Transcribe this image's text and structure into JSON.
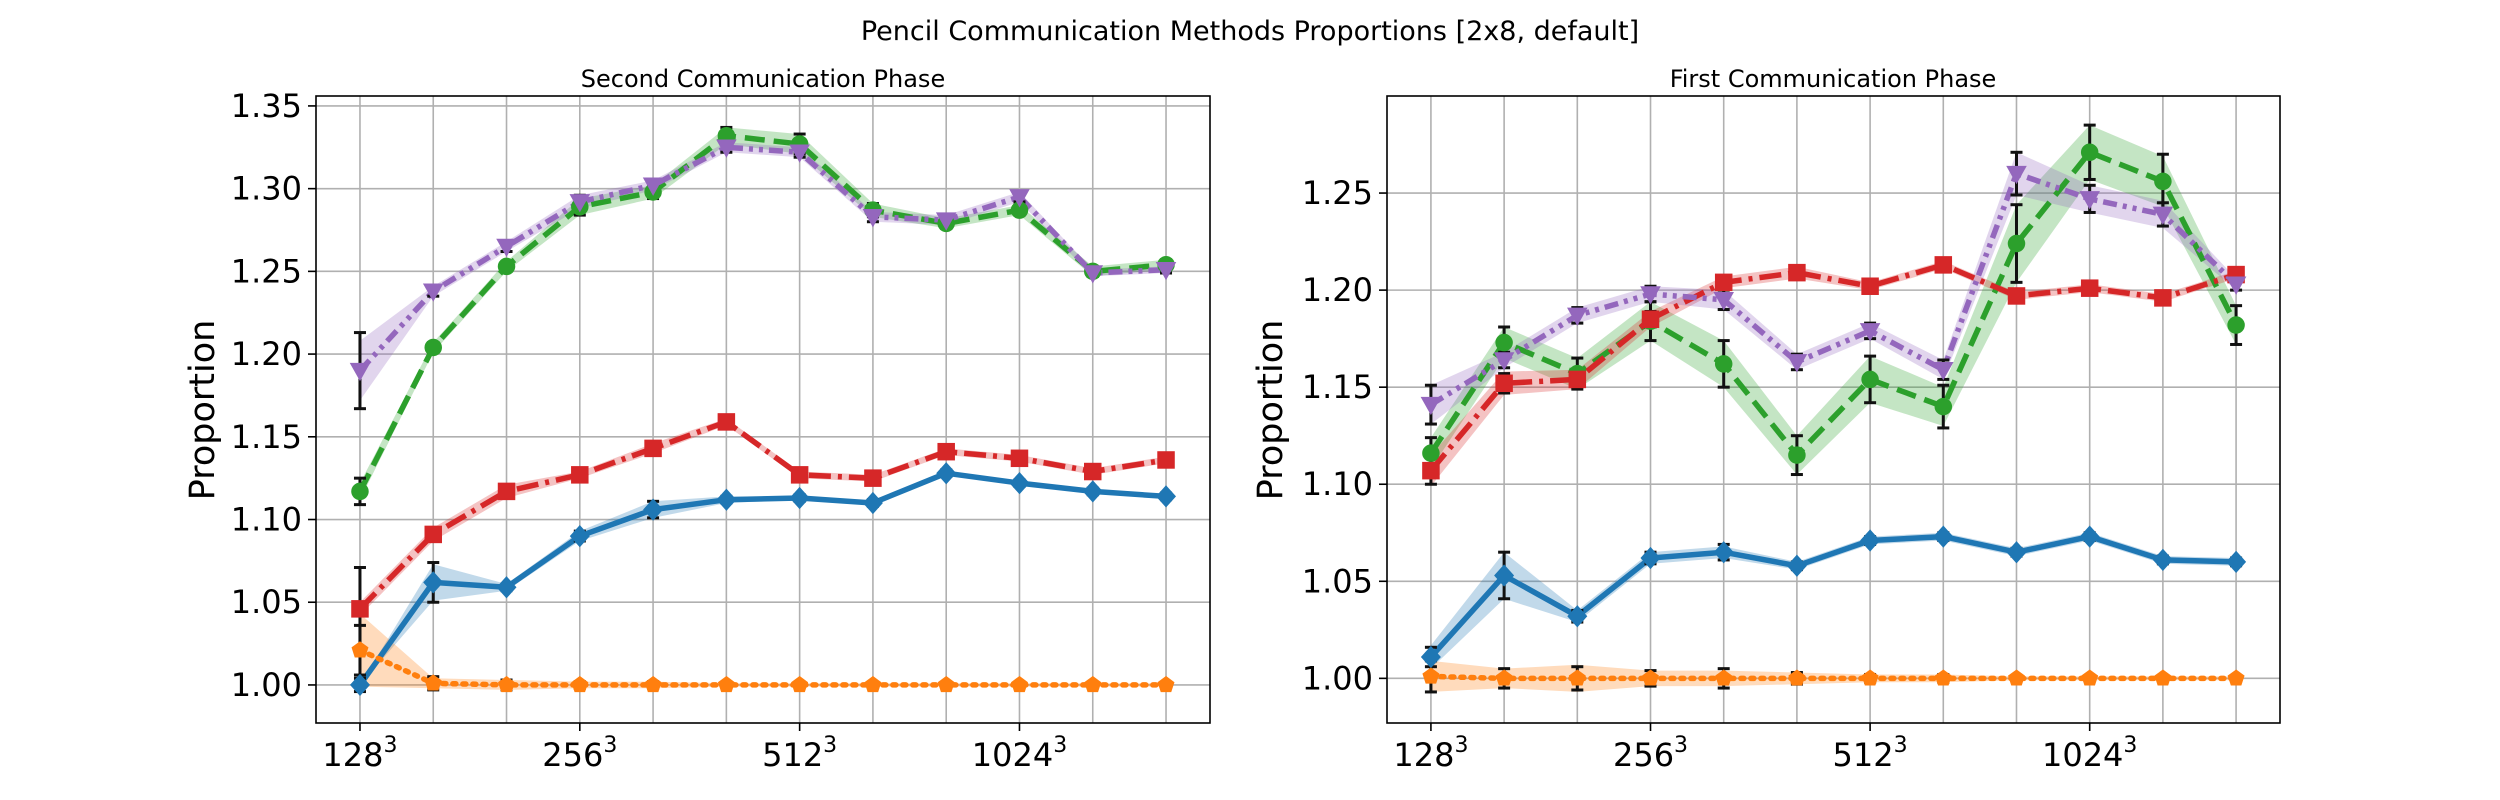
{
  "figure_title": "Pencil Communication Methods Proportions [2x8, default]",
  "chart_data": [
    {
      "type": "line",
      "title": "Second Communication Phase",
      "xlabel": "",
      "ylabel": "Proportion",
      "x": [
        1,
        2,
        3,
        4,
        5,
        6,
        7,
        8,
        9,
        10,
        11,
        12
      ],
      "xticks": [
        {
          "x": 1,
          "base": "128",
          "exp": "3"
        },
        {
          "x": 4,
          "base": "256",
          "exp": "3"
        },
        {
          "x": 7,
          "base": "512",
          "exp": "3"
        },
        {
          "x": 10,
          "base": "1024",
          "exp": "3"
        }
      ],
      "xlim": [
        0.4,
        12.6
      ],
      "ylim": [
        0.977,
        1.356
      ],
      "yticks": [
        "1.00",
        "1.05",
        "1.10",
        "1.15",
        "1.20",
        "1.25",
        "1.30",
        "1.35"
      ],
      "grid": true,
      "series": [
        {
          "color": "#1f77b4",
          "linestyle": "solid",
          "marker": "diamond",
          "values": [
            1.0,
            1.062,
            1.059,
            1.09,
            1.106,
            1.112,
            1.113,
            1.11,
            1.128,
            1.122,
            1.117,
            1.114
          ],
          "band": [
            0.0,
            0.011,
            0.002,
            0.003,
            0.005,
            0.002,
            0.001,
            0.001,
            0.001,
            0.001,
            0.001,
            0.001
          ],
          "errors": [
            0.004,
            0.012,
            0.002,
            0.003,
            0.005,
            0.002,
            0.002,
            0.002,
            0.002,
            0.002,
            0.002,
            0.002
          ]
        },
        {
          "color": "#ff7f0e",
          "linestyle": "dotted",
          "marker": "pentagon",
          "values": [
            1.021,
            1.001,
            1.0,
            1.0,
            1.0,
            1.0,
            1.0,
            1.0,
            1.0,
            1.0,
            1.0,
            1.0
          ],
          "band": [
            0.022,
            0.003,
            0.003,
            0.002,
            0.002,
            0.001,
            0.001,
            0.001,
            0.001,
            0.001,
            0.001,
            0.001
          ],
          "errors": [
            0.015,
            0.004,
            0.003,
            0.002,
            0.002,
            0.001,
            0.001,
            0.001,
            0.001,
            0.001,
            0.001,
            0.001
          ]
        },
        {
          "color": "#2ca02c",
          "linestyle": "dashed",
          "marker": "circle",
          "values": [
            1.117,
            1.204,
            1.253,
            1.289,
            1.298,
            1.332,
            1.327,
            1.287,
            1.279,
            1.287,
            1.25,
            1.254
          ],
          "band": [
            0.005,
            0.003,
            0.003,
            0.005,
            0.004,
            0.005,
            0.006,
            0.004,
            0.003,
            0.003,
            0.003,
            0.003
          ],
          "errors": [
            0.008,
            0.003,
            0.003,
            0.005,
            0.004,
            0.005,
            0.006,
            0.004,
            0.003,
            0.003,
            0.003,
            0.003
          ]
        },
        {
          "color": "#d62728",
          "linestyle": "dashdot",
          "marker": "square",
          "values": [
            1.046,
            1.091,
            1.117,
            1.127,
            1.143,
            1.159,
            1.127,
            1.125,
            1.141,
            1.137,
            1.129,
            1.136
          ],
          "band": [
            0.004,
            0.004,
            0.004,
            0.002,
            0.003,
            0.002,
            0.002,
            0.002,
            0.002,
            0.002,
            0.002,
            0.002
          ],
          "errors": [
            0.025,
            0.003,
            0.004,
            0.002,
            0.003,
            0.002,
            0.002,
            0.002,
            0.002,
            0.002,
            0.002,
            0.002
          ]
        },
        {
          "color": "#9467bd",
          "linestyle": "dashdotdot",
          "marker": "triangle-down",
          "values": [
            1.19,
            1.238,
            1.265,
            1.292,
            1.302,
            1.325,
            1.322,
            1.283,
            1.281,
            1.295,
            1.249,
            1.251
          ],
          "band": [
            0.018,
            0.003,
            0.003,
            0.004,
            0.003,
            0.003,
            0.003,
            0.003,
            0.003,
            0.003,
            0.002,
            0.002
          ],
          "errors": [
            0.023,
            0.003,
            0.003,
            0.004,
            0.003,
            0.003,
            0.003,
            0.003,
            0.003,
            0.003,
            0.002,
            0.002
          ]
        }
      ]
    },
    {
      "type": "line",
      "title": "First Communication Phase",
      "xlabel": "",
      "ylabel": "Proportion",
      "x": [
        1,
        2,
        3,
        4,
        5,
        6,
        7,
        8,
        9,
        10,
        11,
        12
      ],
      "xticks": [
        {
          "x": 1,
          "base": "128",
          "exp": "3"
        },
        {
          "x": 4,
          "base": "256",
          "exp": "3"
        },
        {
          "x": 7,
          "base": "512",
          "exp": "3"
        },
        {
          "x": 10,
          "base": "1024",
          "exp": "3"
        }
      ],
      "xlim": [
        0.4,
        12.6
      ],
      "ylim": [
        0.977,
        1.3
      ],
      "yticks": [
        "1.00",
        "1.05",
        "1.10",
        "1.15",
        "1.20",
        "1.25"
      ],
      "grid": true,
      "series": [
        {
          "color": "#1f77b4",
          "linestyle": "solid",
          "marker": "diamond",
          "values": [
            1.011,
            1.053,
            1.032,
            1.062,
            1.065,
            1.058,
            1.071,
            1.073,
            1.065,
            1.073,
            1.061,
            1.06
          ],
          "band": [
            0.006,
            0.012,
            0.003,
            0.003,
            0.003,
            0.002,
            0.002,
            0.002,
            0.002,
            0.002,
            0.002,
            0.002
          ],
          "errors": [
            0.005,
            0.012,
            0.003,
            0.003,
            0.004,
            0.002,
            0.002,
            0.002,
            0.002,
            0.002,
            0.002,
            0.002
          ]
        },
        {
          "color": "#ff7f0e",
          "linestyle": "dotted",
          "marker": "pentagon",
          "values": [
            1.001,
            1.0,
            1.0,
            1.0,
            1.0,
            1.0,
            1.0,
            1.0,
            1.0,
            1.0,
            1.0,
            1.0
          ],
          "band": [
            0.008,
            0.005,
            0.007,
            0.004,
            0.004,
            0.003,
            0.002,
            0.002,
            0.001,
            0.001,
            0.001,
            0.001
          ],
          "errors": [
            0.008,
            0.005,
            0.006,
            0.004,
            0.005,
            0.003,
            0.002,
            0.002,
            0.001,
            0.001,
            0.001,
            0.001
          ]
        },
        {
          "color": "#2ca02c",
          "linestyle": "dashed",
          "marker": "circle",
          "values": [
            1.116,
            1.173,
            1.157,
            1.184,
            1.162,
            1.115,
            1.154,
            1.14,
            1.224,
            1.271,
            1.256,
            1.182
          ],
          "band": [
            0.008,
            0.008,
            0.008,
            0.01,
            0.012,
            0.01,
            0.012,
            0.01,
            0.02,
            0.014,
            0.013,
            0.01
          ],
          "errors": [
            0.008,
            0.008,
            0.008,
            0.01,
            0.012,
            0.01,
            0.012,
            0.011,
            0.02,
            0.014,
            0.014,
            0.01
          ]
        },
        {
          "color": "#d62728",
          "linestyle": "dashdot",
          "marker": "square",
          "values": [
            1.107,
            1.152,
            1.154,
            1.185,
            1.204,
            1.209,
            1.202,
            1.213,
            1.197,
            1.201,
            1.196,
            1.208
          ],
          "band": [
            0.008,
            0.006,
            0.005,
            0.004,
            0.003,
            0.003,
            0.002,
            0.002,
            0.002,
            0.002,
            0.002,
            0.002
          ],
          "errors": [
            0.007,
            0.005,
            0.004,
            0.004,
            0.003,
            0.002,
            0.002,
            0.002,
            0.002,
            0.002,
            0.002,
            0.002
          ]
        },
        {
          "color": "#9467bd",
          "linestyle": "dashdotdot",
          "marker": "triangle-down",
          "values": [
            1.141,
            1.164,
            1.187,
            1.198,
            1.195,
            1.163,
            1.179,
            1.159,
            1.26,
            1.247,
            1.239,
            1.203
          ],
          "band": [
            0.01,
            0.004,
            0.004,
            0.004,
            0.005,
            0.004,
            0.004,
            0.005,
            0.011,
            0.007,
            0.007,
            0.003
          ],
          "errors": [
            0.01,
            0.004,
            0.004,
            0.004,
            0.005,
            0.004,
            0.004,
            0.005,
            0.011,
            0.007,
            0.006,
            0.003
          ]
        }
      ]
    }
  ]
}
